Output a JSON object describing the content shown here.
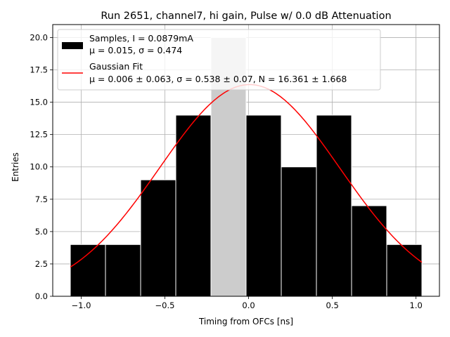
{
  "chart_data": {
    "type": "bar",
    "title": "Run 2651, channel7, hi gain, Pulse w/ 0.0 dB Attenuation",
    "xlabel": "Timing from OFCs [ns]",
    "ylabel": "Entries",
    "xlim": [
      -1.17,
      1.14
    ],
    "ylim": [
      0,
      21
    ],
    "grid": true,
    "legend_position": "top-left",
    "xticks": [
      -1.0,
      -0.5,
      0.0,
      0.5,
      1.0
    ],
    "xtick_labels": [
      "−1.0",
      "−0.5",
      "0.0",
      "0.5",
      "1.0"
    ],
    "yticks": [
      0.0,
      2.5,
      5.0,
      7.5,
      10.0,
      12.5,
      15.0,
      17.5,
      20.0
    ],
    "ytick_labels": [
      "0.0",
      "2.5",
      "5.0",
      "7.5",
      "10.0",
      "12.5",
      "15.0",
      "17.5",
      "20.0"
    ],
    "histogram": {
      "bin_edges": [
        -1.065,
        -0.855,
        -0.645,
        -0.435,
        -0.225,
        -0.015,
        0.195,
        0.405,
        0.615,
        0.825,
        1.035
      ],
      "counts": [
        4,
        4,
        9,
        14,
        20,
        14,
        10,
        14,
        7,
        4
      ],
      "color": "#000000",
      "highlight_color": "#cccccc",
      "highlight_bin": 4,
      "edge_color": "#ffffff"
    },
    "fit_curve": {
      "type": "gaussian",
      "mu": 0.006,
      "sigma": 0.538,
      "N": 16.361,
      "x_range": [
        -1.065,
        1.035
      ],
      "color": "#ff0000"
    },
    "legend": [
      {
        "kind": "bar",
        "color": "#000000",
        "line1": "Samples, I = 0.0879mA",
        "line2": "μ = 0.015, σ = 0.474"
      },
      {
        "kind": "line",
        "color": "#ff0000",
        "line1": "Gaussian Fit",
        "line2": "μ = 0.006 ± 0.063, σ = 0.538 ± 0.07, N = 16.361 ± 1.668"
      }
    ]
  }
}
